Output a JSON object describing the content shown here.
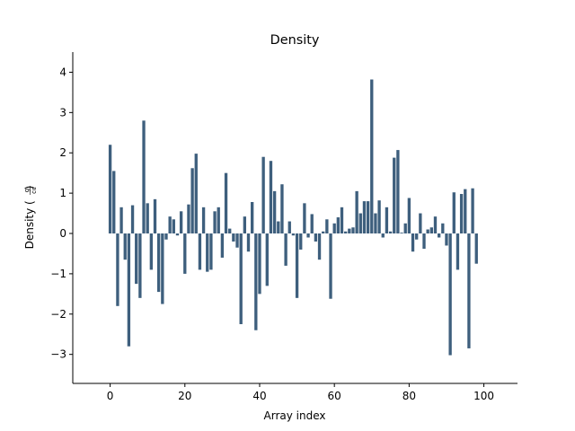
{
  "chart_data": {
    "type": "bar",
    "title": "Density",
    "xlabel": "Array index",
    "ylabel": {
      "prefix": "Density (",
      "numerator": "g",
      "denominator": "cc",
      "suffix": ")"
    },
    "xlim": [
      -10,
      109
    ],
    "ylim": [
      -3.72,
      4.5
    ],
    "xticks": [
      0,
      20,
      40,
      60,
      80,
      100
    ],
    "yticks": [
      -3,
      -2,
      -1,
      0,
      1,
      2,
      3,
      4
    ],
    "ytick_labels": [
      "−3",
      "−2",
      "−1",
      "0",
      "1",
      "2",
      "3",
      "4"
    ],
    "grid": false,
    "bar_color": "#3e5f7d",
    "x": [
      0,
      1,
      2,
      3,
      4,
      5,
      6,
      7,
      8,
      9,
      10,
      11,
      12,
      13,
      14,
      15,
      16,
      17,
      18,
      19,
      20,
      21,
      22,
      23,
      24,
      25,
      26,
      27,
      28,
      29,
      30,
      31,
      32,
      33,
      34,
      35,
      36,
      37,
      38,
      39,
      40,
      41,
      42,
      43,
      44,
      45,
      46,
      47,
      48,
      49,
      50,
      51,
      52,
      53,
      54,
      55,
      56,
      57,
      58,
      59,
      60,
      61,
      62,
      63,
      64,
      65,
      66,
      67,
      68,
      69,
      70,
      71,
      72,
      73,
      74,
      75,
      76,
      77,
      78,
      79,
      80,
      81,
      82,
      83,
      84,
      85,
      86,
      87,
      88,
      89,
      90,
      91,
      92,
      93,
      94,
      95,
      96,
      97,
      98,
      99
    ],
    "values": [
      2.2,
      1.55,
      -1.8,
      0.65,
      -0.65,
      -2.8,
      0.7,
      -1.25,
      -1.6,
      2.8,
      0.75,
      -0.9,
      0.85,
      -1.45,
      -1.75,
      -0.15,
      0.42,
      0.35,
      -0.05,
      0.55,
      -1.0,
      0.72,
      1.62,
      1.98,
      -0.9,
      0.65,
      -0.95,
      -0.9,
      0.55,
      0.65,
      -0.6,
      1.5,
      0.12,
      -0.2,
      -0.35,
      -2.25,
      0.42,
      -0.45,
      0.78,
      -2.4,
      -1.5,
      1.9,
      -1.3,
      1.8,
      1.05,
      0.3,
      1.22,
      -0.8,
      0.3,
      -0.05,
      -1.6,
      -0.4,
      0.75,
      -0.1,
      0.48,
      -0.2,
      -0.65,
      0.05,
      0.35,
      -1.62,
      0.25,
      0.4,
      0.65,
      0.05,
      0.12,
      0.15,
      1.05,
      0.5,
      0.8,
      0.8,
      3.82,
      0.5,
      0.82,
      -0.1,
      0.65,
      0.05,
      1.88,
      2.07,
      0.02,
      0.25,
      0.88,
      -0.45,
      -0.15,
      0.5,
      -0.38,
      0.1,
      0.15,
      0.42,
      -0.1,
      0.25,
      -0.3,
      -3.02,
      1.02,
      -0.9,
      0.98,
      1.1,
      -2.85,
      1.12,
      -0.75,
      0.0
    ]
  }
}
